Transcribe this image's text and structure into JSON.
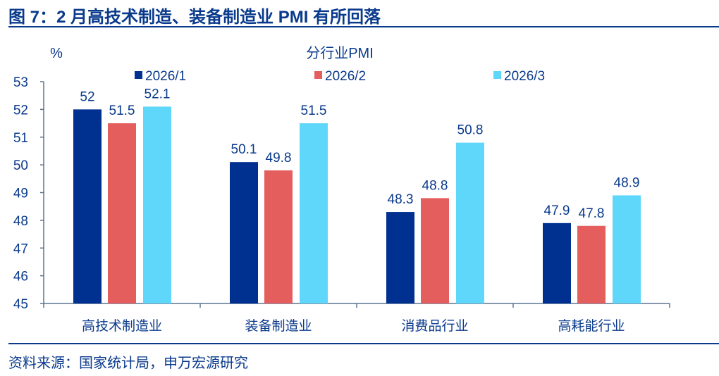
{
  "title": "图 7：2 月高技术制造、装备制造业 PMI 有所回落",
  "source": "资料来源：国家统计局，申万宏源研究",
  "chart_data": {
    "type": "bar",
    "title": "分行业PMI",
    "ylabel": "%",
    "ylim": [
      45,
      53
    ],
    "yticks": [
      45,
      46,
      47,
      48,
      49,
      50,
      51,
      52,
      53
    ],
    "categories": [
      "高技术制造业",
      "装备制造业",
      "消费品行业",
      "高耗能行业"
    ],
    "series": [
      {
        "name": "2026/1",
        "color": "#003090",
        "values": [
          52,
          50.1,
          48.3,
          47.9
        ]
      },
      {
        "name": "2026/2",
        "color": "#e55e5e",
        "values": [
          51.5,
          49.8,
          48.8,
          47.8
        ]
      },
      {
        "name": "2026/3",
        "color": "#5fd7fb",
        "values": [
          52.1,
          51.5,
          50.8,
          48.9
        ]
      }
    ],
    "legend": "top",
    "grid": false
  }
}
